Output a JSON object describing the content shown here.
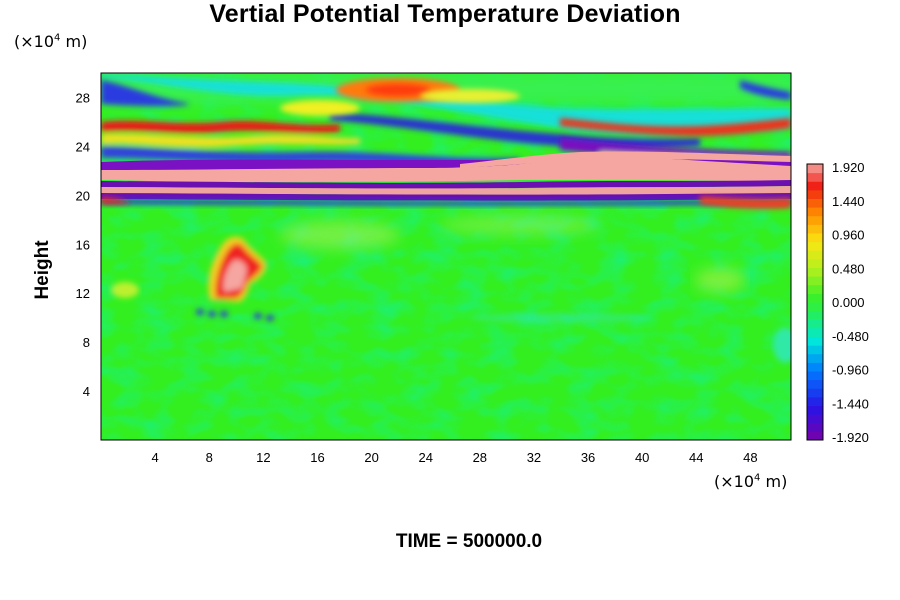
{
  "chart_data": {
    "type": "heatmap",
    "title": "Vertial Potential Temperature Deviation",
    "ylabel": "Height",
    "y_unit": "(×10",
    "x_unit": "(×10",
    "unit_exp": "4",
    "unit_suffix": " m)",
    "footer": "TIME = 500000.0",
    "x_ticks": [
      "4",
      "8",
      "12",
      "16",
      "20",
      "24",
      "28",
      "32",
      "36",
      "40",
      "44",
      "48"
    ],
    "x_tick_values": [
      4,
      8,
      12,
      16,
      20,
      24,
      28,
      32,
      36,
      40,
      44,
      48
    ],
    "xlim": [
      0,
      51
    ],
    "y_ticks": [
      "4",
      "8",
      "12",
      "16",
      "20",
      "24",
      "28"
    ],
    "y_tick_values": [
      4,
      8,
      12,
      16,
      20,
      24,
      28
    ],
    "ylim": [
      0,
      30
    ],
    "colorbar": {
      "range": [
        -1.92,
        1.92
      ],
      "labels": [
        "1.920",
        "1.440",
        "0.960",
        "0.480",
        "0.000",
        "-0.480",
        "-0.960",
        "-1.440",
        "-1.920"
      ],
      "label_values": [
        1.92,
        1.44,
        0.96,
        0.48,
        0.0,
        -0.48,
        -0.96,
        -1.44,
        -1.92
      ],
      "levels": 32,
      "colormap": "purple-blue-cyan-green-yellow-orange-red-pink"
    },
    "features": [
      {
        "name": "background",
        "value": 0.0
      },
      {
        "name": "pink band",
        "y_range": [
          20.5,
          22
        ],
        "value": 1.92
      },
      {
        "name": "purple band",
        "y_range": [
          19.5,
          20.5
        ],
        "value": -1.92
      },
      {
        "name": "warm plume",
        "x": 10,
        "y": 13.5,
        "value": 1.5
      },
      {
        "name": "warm patch upper",
        "x": 22,
        "y": 29,
        "value": 1.0
      },
      {
        "name": "cold band upper",
        "y_range": [
          24,
          26
        ],
        "value": -1.4
      }
    ]
  }
}
